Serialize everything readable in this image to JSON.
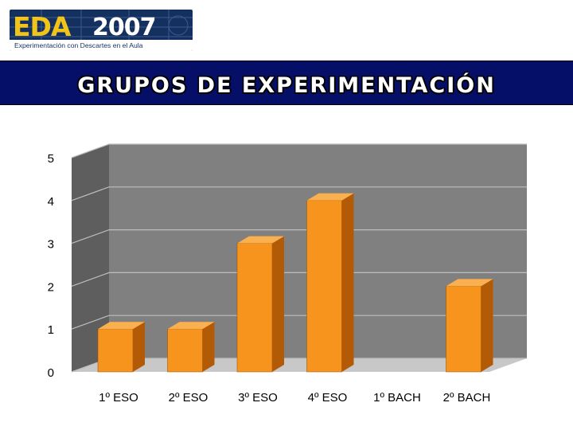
{
  "header": {
    "logo_eda": "EDA",
    "logo_year": "2007",
    "logo_subtitle": "Experimentación con Descartes en el Aula",
    "title": "GRUPOS DE EXPERIMENTACIÓN"
  },
  "colors": {
    "title_bar": "#050f68",
    "bar_front": "#f7941d",
    "bar_side": "#b35a06",
    "bar_top": "#fbb04f",
    "wall": "#808080",
    "floor": "#c8c8c8"
  },
  "chart_data": {
    "type": "bar",
    "title": "",
    "xlabel": "",
    "ylabel": "",
    "categories": [
      "1º ESO",
      "2º ESO",
      "3º ESO",
      "4º ESO",
      "1º BACH",
      "2º BACH"
    ],
    "values": [
      1,
      1,
      3,
      4,
      0,
      2
    ],
    "ylim": [
      0,
      5
    ],
    "yticks": [
      "0",
      "1",
      "2",
      "3",
      "4",
      "5"
    ],
    "grid": true
  }
}
